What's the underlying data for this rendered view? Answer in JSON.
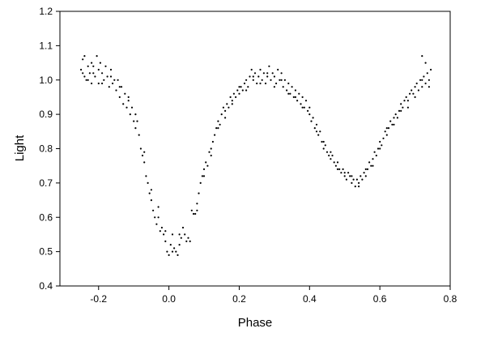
{
  "chart_data": {
    "type": "scatter",
    "title": "",
    "xlabel": "Phase",
    "ylabel": "Light",
    "xlim": [
      -0.31,
      0.8
    ],
    "ylim": [
      0.4,
      1.2
    ],
    "xticks": [
      "-0.2",
      "0.0",
      "0.2",
      "0.4",
      "0.6",
      "0.8"
    ],
    "xtick_values": [
      -0.2,
      0.0,
      0.2,
      0.4,
      0.6,
      0.8
    ],
    "yticks": [
      "0.4",
      "0.5",
      "0.6",
      "0.7",
      "0.8",
      "0.9",
      "1.0",
      "1.1",
      "1.2"
    ],
    "ytick_values": [
      0.4,
      0.5,
      0.6,
      0.7,
      0.8,
      0.9,
      1.0,
      1.1,
      1.2
    ],
    "grid": false,
    "legend": "none",
    "marker_color": "#000000",
    "series": [
      {
        "points": [
          [
            -0.25,
            1.03
          ],
          [
            -0.245,
            1.06
          ],
          [
            -0.24,
            1.01
          ],
          [
            -0.24,
            1.07
          ],
          [
            -0.235,
            1.0
          ],
          [
            -0.23,
            1.04
          ],
          [
            -0.225,
            1.02
          ],
          [
            -0.22,
            0.99
          ],
          [
            -0.22,
            1.05
          ],
          [
            -0.215,
            1.02
          ],
          [
            -0.21,
            1.01
          ],
          [
            -0.205,
            1.07
          ],
          [
            -0.2,
            1.03
          ],
          [
            -0.2,
            0.99
          ],
          [
            -0.195,
            1.05
          ],
          [
            -0.19,
            1.02
          ],
          [
            -0.185,
            1.0
          ],
          [
            -0.18,
            1.04
          ],
          [
            -0.175,
            1.01
          ],
          [
            -0.17,
            0.98
          ],
          [
            -0.165,
            1.03
          ],
          [
            -0.16,
            0.99
          ],
          [
            -0.155,
            1.0
          ],
          [
            -0.15,
            0.97
          ],
          [
            -0.145,
            1.0
          ],
          [
            -0.14,
            0.95
          ],
          [
            -0.135,
            0.98
          ],
          [
            -0.13,
            0.93
          ],
          [
            -0.125,
            0.96
          ],
          [
            -0.12,
            0.92
          ],
          [
            -0.115,
            0.94
          ],
          [
            -0.11,
            0.9
          ],
          [
            -0.105,
            0.92
          ],
          [
            -0.1,
            0.88
          ],
          [
            -0.095,
            0.86
          ],
          [
            -0.09,
            0.88
          ],
          [
            -0.085,
            0.84
          ],
          [
            -0.08,
            0.8
          ],
          [
            -0.075,
            0.78
          ],
          [
            -0.07,
            0.76
          ],
          [
            -0.065,
            0.72
          ],
          [
            -0.06,
            0.7
          ],
          [
            -0.055,
            0.67
          ],
          [
            -0.05,
            0.65
          ],
          [
            -0.045,
            0.62
          ],
          [
            -0.04,
            0.6
          ],
          [
            -0.035,
            0.58
          ],
          [
            -0.03,
            0.6
          ],
          [
            -0.025,
            0.56
          ],
          [
            -0.02,
            0.57
          ],
          [
            -0.015,
            0.55
          ],
          [
            -0.01,
            0.53
          ],
          [
            -0.005,
            0.5
          ],
          [
            0.0,
            0.49
          ],
          [
            0.005,
            0.52
          ],
          [
            0.01,
            0.55
          ],
          [
            0.015,
            0.51
          ],
          [
            0.02,
            0.5
          ],
          [
            0.025,
            0.49
          ],
          [
            0.03,
            0.52
          ],
          [
            0.035,
            0.54
          ],
          [
            0.04,
            0.57
          ],
          [
            0.045,
            0.55
          ],
          [
            0.05,
            0.53
          ],
          [
            0.055,
            0.54
          ],
          [
            0.06,
            0.53
          ],
          [
            0.065,
            0.62
          ],
          [
            0.07,
            0.61
          ],
          [
            0.075,
            0.61
          ],
          [
            0.08,
            0.64
          ],
          [
            0.085,
            0.67
          ],
          [
            0.09,
            0.7
          ],
          [
            0.095,
            0.72
          ],
          [
            0.1,
            0.74
          ],
          [
            0.105,
            0.76
          ],
          [
            0.11,
            0.75
          ],
          [
            0.115,
            0.79
          ],
          [
            0.12,
            0.78
          ],
          [
            0.125,
            0.82
          ],
          [
            0.13,
            0.84
          ],
          [
            0.135,
            0.86
          ],
          [
            0.14,
            0.88
          ],
          [
            0.145,
            0.87
          ],
          [
            0.15,
            0.9
          ],
          [
            0.155,
            0.92
          ],
          [
            0.16,
            0.91
          ],
          [
            0.165,
            0.93
          ],
          [
            0.17,
            0.92
          ],
          [
            0.175,
            0.95
          ],
          [
            0.18,
            0.94
          ],
          [
            0.185,
            0.96
          ],
          [
            0.19,
            0.95
          ],
          [
            0.195,
            0.97
          ],
          [
            0.2,
            0.96
          ],
          [
            0.205,
            0.98
          ],
          [
            0.21,
            0.97
          ],
          [
            0.215,
            0.99
          ],
          [
            0.22,
            1.0
          ],
          [
            0.225,
            0.98
          ],
          [
            0.23,
            1.01
          ],
          [
            0.235,
            1.03
          ],
          [
            0.24,
            1.0
          ],
          [
            0.245,
            1.02
          ],
          [
            0.25,
            0.99
          ],
          [
            0.255,
            1.01
          ],
          [
            0.26,
            1.03
          ],
          [
            0.265,
            1.0
          ],
          [
            0.27,
            1.02
          ],
          [
            0.275,
            0.99
          ],
          [
            0.28,
            1.01
          ],
          [
            0.285,
            1.04
          ],
          [
            0.29,
            1.0
          ],
          [
            0.295,
            1.02
          ],
          [
            0.3,
            1.01
          ],
          [
            0.305,
            0.99
          ],
          [
            0.31,
            1.03
          ],
          [
            0.315,
            1.0
          ],
          [
            0.32,
            1.02
          ],
          [
            0.325,
            0.98
          ],
          [
            0.33,
            1.0
          ],
          [
            0.335,
            0.97
          ],
          [
            0.34,
            0.99
          ],
          [
            0.345,
            0.96
          ],
          [
            0.35,
            0.98
          ],
          [
            0.355,
            0.95
          ],
          [
            0.36,
            0.97
          ],
          [
            0.365,
            0.94
          ],
          [
            0.37,
            0.96
          ],
          [
            0.375,
            0.93
          ],
          [
            0.38,
            0.95
          ],
          [
            0.385,
            0.92
          ],
          [
            0.39,
            0.94
          ],
          [
            0.395,
            0.91
          ],
          [
            0.4,
            0.9
          ],
          [
            0.405,
            0.88
          ],
          [
            0.41,
            0.89
          ],
          [
            0.415,
            0.86
          ],
          [
            0.42,
            0.87
          ],
          [
            0.425,
            0.84
          ],
          [
            0.43,
            0.85
          ],
          [
            0.435,
            0.82
          ],
          [
            0.44,
            0.8
          ],
          [
            0.445,
            0.81
          ],
          [
            0.45,
            0.79
          ],
          [
            0.455,
            0.78
          ],
          [
            0.46,
            0.77
          ],
          [
            0.465,
            0.78
          ],
          [
            0.47,
            0.76
          ],
          [
            0.475,
            0.75
          ],
          [
            0.48,
            0.76
          ],
          [
            0.485,
            0.74
          ],
          [
            0.49,
            0.73
          ],
          [
            0.495,
            0.74
          ],
          [
            0.5,
            0.72
          ],
          [
            0.505,
            0.71
          ],
          [
            0.51,
            0.73
          ],
          [
            0.515,
            0.72
          ],
          [
            0.52,
            0.7
          ],
          [
            0.525,
            0.71
          ],
          [
            0.53,
            0.69
          ],
          [
            0.535,
            0.71
          ],
          [
            0.54,
            0.7
          ],
          [
            0.545,
            0.72
          ],
          [
            0.55,
            0.71
          ],
          [
            0.555,
            0.73
          ],
          [
            0.56,
            0.72
          ],
          [
            0.565,
            0.74
          ],
          [
            0.57,
            0.76
          ],
          [
            0.575,
            0.75
          ],
          [
            0.58,
            0.77
          ],
          [
            0.585,
            0.79
          ],
          [
            0.59,
            0.78
          ],
          [
            0.595,
            0.8
          ],
          [
            0.6,
            0.82
          ],
          [
            0.605,
            0.81
          ],
          [
            0.61,
            0.83
          ],
          [
            0.615,
            0.85
          ],
          [
            0.62,
            0.84
          ],
          [
            0.625,
            0.86
          ],
          [
            0.63,
            0.88
          ],
          [
            0.635,
            0.87
          ],
          [
            0.64,
            0.89
          ],
          [
            0.645,
            0.9
          ],
          [
            0.65,
            0.89
          ],
          [
            0.655,
            0.91
          ],
          [
            0.66,
            0.93
          ],
          [
            0.665,
            0.92
          ],
          [
            0.67,
            0.94
          ],
          [
            0.675,
            0.95
          ],
          [
            0.68,
            0.94
          ],
          [
            0.685,
            0.96
          ],
          [
            0.69,
            0.97
          ],
          [
            0.695,
            0.96
          ],
          [
            0.7,
            0.98
          ],
          [
            0.705,
            0.99
          ],
          [
            0.71,
            0.97
          ],
          [
            0.715,
            1.0
          ],
          [
            0.72,
            0.98
          ],
          [
            0.72,
            1.07
          ],
          [
            0.725,
            1.01
          ],
          [
            0.73,
            0.99
          ],
          [
            0.73,
            1.05
          ],
          [
            0.735,
            1.02
          ],
          [
            0.74,
            1.0
          ],
          [
            0.745,
            1.03
          ],
          [
            -0.245,
            1.02
          ],
          [
            -0.23,
            1.0
          ],
          [
            -0.215,
            1.04
          ],
          [
            -0.19,
            0.99
          ],
          [
            -0.165,
            1.01
          ],
          [
            -0.14,
            0.98
          ],
          [
            -0.115,
            0.95
          ],
          [
            -0.095,
            0.9
          ],
          [
            -0.07,
            0.79
          ],
          [
            -0.05,
            0.68
          ],
          [
            -0.03,
            0.63
          ],
          [
            -0.01,
            0.56
          ],
          [
            0.01,
            0.5
          ],
          [
            0.03,
            0.55
          ],
          [
            0.08,
            0.62
          ],
          [
            0.1,
            0.72
          ],
          [
            0.12,
            0.8
          ],
          [
            0.14,
            0.86
          ],
          [
            0.16,
            0.89
          ],
          [
            0.18,
            0.93
          ],
          [
            0.2,
            0.98
          ],
          [
            0.22,
            0.97
          ],
          [
            0.24,
            1.01
          ],
          [
            0.26,
            0.99
          ],
          [
            0.28,
            1.02
          ],
          [
            0.3,
            0.98
          ],
          [
            0.32,
            1.0
          ],
          [
            0.34,
            0.96
          ],
          [
            0.36,
            0.95
          ],
          [
            0.38,
            0.92
          ],
          [
            0.4,
            0.92
          ],
          [
            0.42,
            0.85
          ],
          [
            0.44,
            0.82
          ],
          [
            0.46,
            0.79
          ],
          [
            0.48,
            0.74
          ],
          [
            0.5,
            0.73
          ],
          [
            0.52,
            0.72
          ],
          [
            0.54,
            0.69
          ],
          [
            0.56,
            0.74
          ],
          [
            0.58,
            0.75
          ],
          [
            0.6,
            0.8
          ],
          [
            0.62,
            0.86
          ],
          [
            0.64,
            0.87
          ],
          [
            0.66,
            0.91
          ],
          [
            0.68,
            0.92
          ],
          [
            0.7,
            0.95
          ],
          [
            0.72,
            1.0
          ],
          [
            0.74,
            0.98
          ]
        ]
      }
    ]
  }
}
